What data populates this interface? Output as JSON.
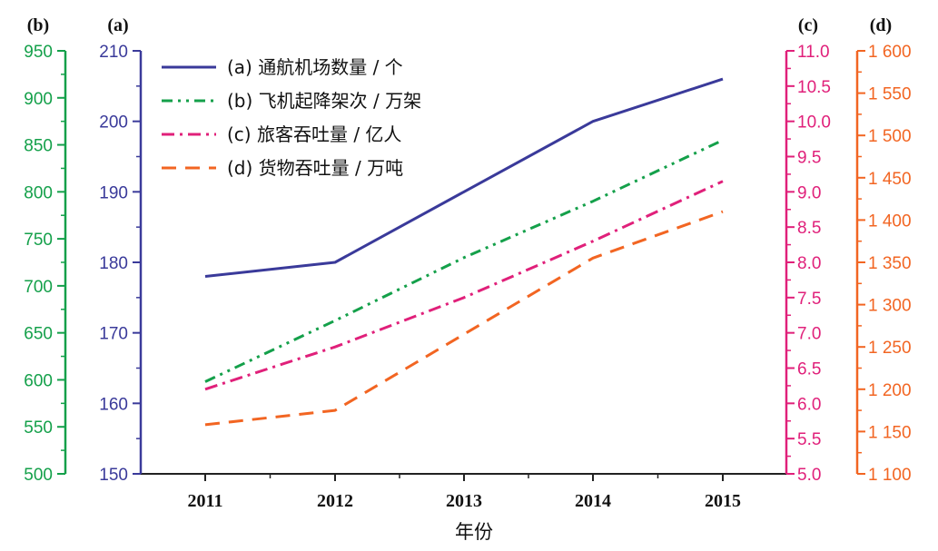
{
  "chart_data": {
    "type": "line",
    "categories": [
      "2011",
      "2012",
      "2013",
      "2014",
      "2015"
    ],
    "xlabel": "年份",
    "axes": [
      {
        "id": "a",
        "label": "(a)",
        "min": 150,
        "max": 210,
        "ticks": [
          "150",
          "160",
          "170",
          "180",
          "190",
          "200",
          "210"
        ],
        "color": "#3a3a9a"
      },
      {
        "id": "b",
        "label": "(b)",
        "min": 500,
        "max": 950,
        "ticks": [
          "500",
          "550",
          "600",
          "650",
          "700",
          "750",
          "800",
          "850",
          "900",
          "950"
        ],
        "color": "#14a04a"
      },
      {
        "id": "c",
        "label": "(c)",
        "min": 5.0,
        "max": 11.0,
        "ticks": [
          "5.0",
          "5.5",
          "6.0",
          "6.5",
          "7.0",
          "7.5",
          "8.0",
          "8.5",
          "9.0",
          "9.5",
          "10.0",
          "10.5",
          "11.0"
        ],
        "color": "#e0207a"
      },
      {
        "id": "d",
        "label": "(d)",
        "min": 1100,
        "max": 1600,
        "ticks": [
          "1 100",
          "1 150",
          "1 200",
          "1 250",
          "1 300",
          "1 350",
          "1 400",
          "1 450",
          "1 500",
          "1 550",
          "1 600"
        ],
        "color": "#f26522"
      }
    ],
    "series": [
      {
        "name": "(a) 通航机场数量 / 个",
        "axis": "a",
        "color": "#3a3a9a",
        "dash": "",
        "values": [
          178,
          180,
          190,
          200,
          206
        ]
      },
      {
        "name": "(b) 飞机起降架次 / 万架",
        "axis": "b",
        "color": "#14a04a",
        "dash": "12,6,3,6,3,6",
        "values": [
          598,
          663,
          730,
          790,
          855
        ]
      },
      {
        "name": "(c) 旅客吞吐量 / 亿人",
        "axis": "c",
        "color": "#e0207a",
        "dash": "14,6,3,6",
        "values": [
          6.2,
          6.8,
          7.5,
          8.3,
          9.15
        ]
      },
      {
        "name": "(d) 货物吞吐量 / 万吨",
        "axis": "d",
        "color": "#f26522",
        "dash": "16,10",
        "values": [
          1158,
          1175,
          1265,
          1355,
          1410
        ]
      }
    ],
    "legend_position": "top-left",
    "grid": false
  }
}
